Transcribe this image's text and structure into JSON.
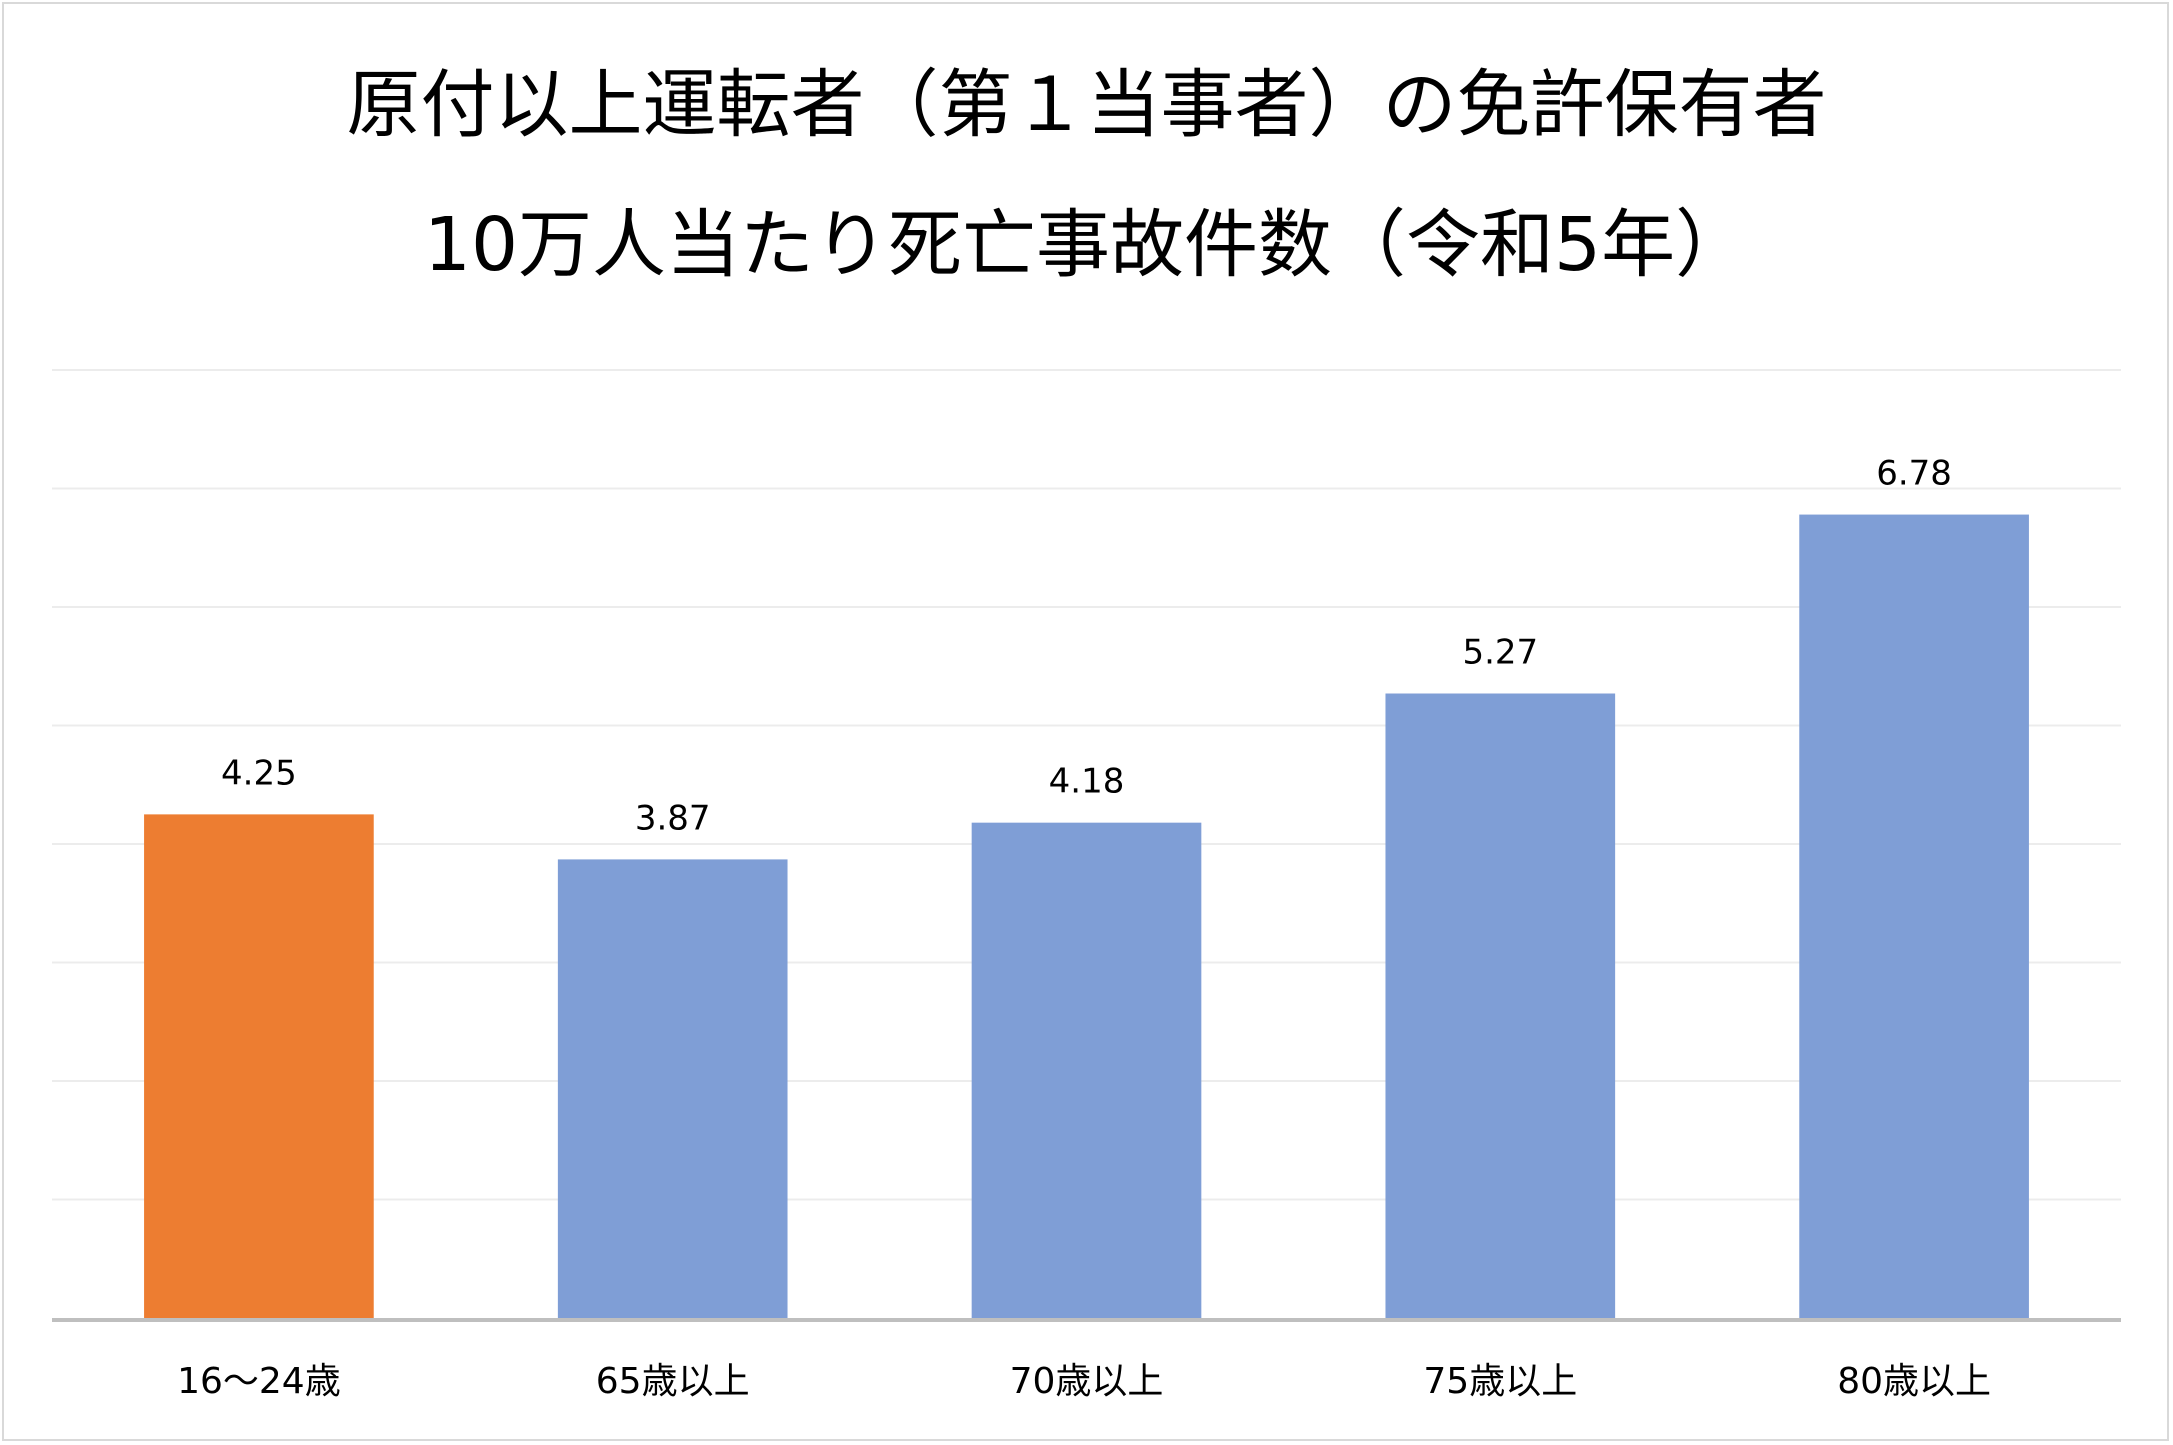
{
  "chart_data": {
    "type": "bar",
    "title": "原付以上運転者（第１当事者）の免許保有者",
    "subtitle": "10万人当たり死亡事故件数（令和5年）",
    "categories": [
      "16〜24歳",
      "65歳以上",
      "70歳以上",
      "75歳以上",
      "80歳以上"
    ],
    "values": [
      4.25,
      3.87,
      4.18,
      5.27,
      6.78
    ],
    "value_labels": [
      "4.25",
      "3.87",
      "4.18",
      "5.27",
      "6.78"
    ],
    "bar_colors": [
      "#ED7D31",
      "#7F9ED6",
      "#7F9ED6",
      "#7F9ED6",
      "#7F9ED6"
    ],
    "gridline_color": "#ececec",
    "axis_color": "#bfbfbf",
    "ylim": [
      0,
      8
    ],
    "grid": true,
    "legend": "none",
    "xlabel": "",
    "ylabel": ""
  }
}
